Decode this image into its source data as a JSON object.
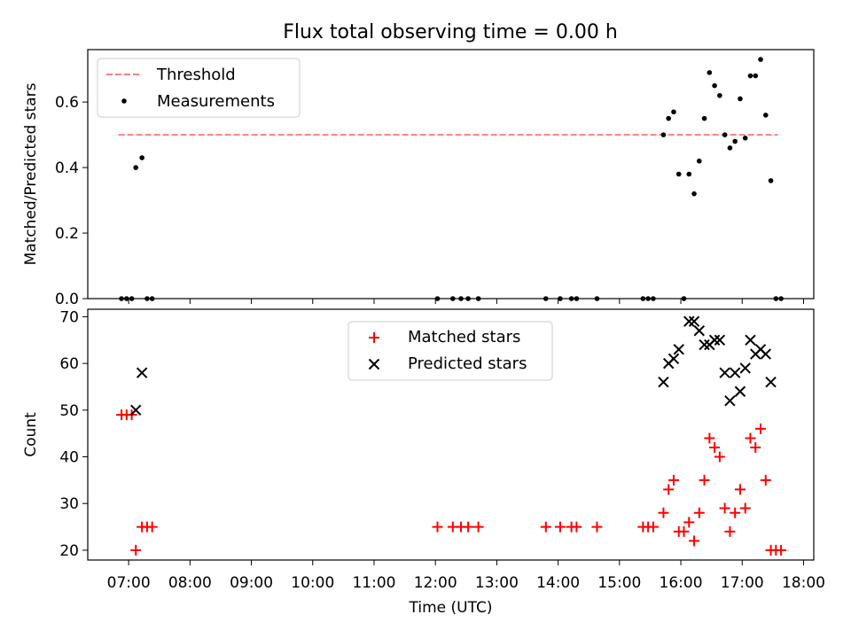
{
  "figure": {
    "title": "Flux total observing time = 0.00 h"
  },
  "chart_data": [
    {
      "type": "scatter",
      "ylabel": "Matched/Predicted stars",
      "xlabel": "",
      "xlim": [
        "06:20",
        "18:10"
      ],
      "ylim": [
        0,
        0.76
      ],
      "yticks": [
        0.0,
        0.2,
        0.4,
        0.6
      ],
      "ytick_labels": [
        "0.0",
        "0.2",
        "0.4",
        "0.6"
      ],
      "grid": false,
      "legend_position": "upper left",
      "threshold": {
        "name": "Threshold",
        "y": 0.5,
        "x_range": [
          "06:50",
          "17:35"
        ],
        "color": "#ff7f7f",
        "style": "dashed"
      },
      "series": [
        {
          "name": "Measurements",
          "marker": "dot",
          "color": "#000000",
          "points": [
            [
              "06:53",
              0.0
            ],
            [
              "06:58",
              0.0
            ],
            [
              "07:03",
              0.0
            ],
            [
              "07:07",
              0.4
            ],
            [
              "07:13",
              0.43
            ],
            [
              "07:18",
              0.0
            ],
            [
              "07:23",
              0.0
            ],
            [
              "12:02",
              0.0
            ],
            [
              "12:17",
              0.0
            ],
            [
              "12:25",
              0.0
            ],
            [
              "12:32",
              0.0
            ],
            [
              "12:42",
              0.0
            ],
            [
              "13:48",
              0.0
            ],
            [
              "14:02",
              0.0
            ],
            [
              "14:13",
              0.0
            ],
            [
              "14:18",
              0.0
            ],
            [
              "14:38",
              0.0
            ],
            [
              "15:23",
              0.0
            ],
            [
              "15:28",
              0.0
            ],
            [
              "15:33",
              0.0
            ],
            [
              "15:43",
              0.5
            ],
            [
              "15:48",
              0.55
            ],
            [
              "15:53",
              0.57
            ],
            [
              "15:58",
              0.38
            ],
            [
              "16:03",
              0.0
            ],
            [
              "16:08",
              0.38
            ],
            [
              "16:13",
              0.32
            ],
            [
              "16:18",
              0.42
            ],
            [
              "16:23",
              0.55
            ],
            [
              "16:28",
              0.69
            ],
            [
              "16:33",
              0.65
            ],
            [
              "16:38",
              0.62
            ],
            [
              "16:43",
              0.5
            ],
            [
              "16:48",
              0.46
            ],
            [
              "16:53",
              0.48
            ],
            [
              "16:58",
              0.61
            ],
            [
              "17:03",
              0.49
            ],
            [
              "17:08",
              0.68
            ],
            [
              "17:13",
              0.68
            ],
            [
              "17:18",
              0.73
            ],
            [
              "17:23",
              0.56
            ],
            [
              "17:28",
              0.36
            ],
            [
              "17:33",
              0.0
            ],
            [
              "17:38",
              0.0
            ]
          ]
        }
      ]
    },
    {
      "type": "scatter",
      "ylabel": "Count",
      "xlabel": "Time (UTC)",
      "xlim": [
        "06:20",
        "18:10"
      ],
      "ylim": [
        17.9,
        71.6
      ],
      "yticks": [
        20,
        30,
        40,
        50,
        60,
        70
      ],
      "ytick_labels": [
        "20",
        "30",
        "40",
        "50",
        "60",
        "70"
      ],
      "xticks": [
        "07:00",
        "08:00",
        "09:00",
        "10:00",
        "11:00",
        "12:00",
        "13:00",
        "14:00",
        "15:00",
        "16:00",
        "17:00",
        "18:00"
      ],
      "grid": false,
      "legend_position": "upper center",
      "series": [
        {
          "name": "Matched stars",
          "marker": "plus",
          "color": "#ff0000",
          "points": [
            [
              "06:53",
              49
            ],
            [
              "06:58",
              49
            ],
            [
              "07:03",
              49
            ],
            [
              "07:07",
              20
            ],
            [
              "07:13",
              25
            ],
            [
              "07:18",
              25
            ],
            [
              "07:23",
              25
            ],
            [
              "12:02",
              25
            ],
            [
              "12:17",
              25
            ],
            [
              "12:25",
              25
            ],
            [
              "12:32",
              25
            ],
            [
              "12:42",
              25
            ],
            [
              "13:48",
              25
            ],
            [
              "14:02",
              25
            ],
            [
              "14:13",
              25
            ],
            [
              "14:18",
              25
            ],
            [
              "14:38",
              25
            ],
            [
              "15:23",
              25
            ],
            [
              "15:28",
              25
            ],
            [
              "15:33",
              25
            ],
            [
              "15:43",
              28
            ],
            [
              "15:48",
              33
            ],
            [
              "15:53",
              35
            ],
            [
              "15:58",
              24
            ],
            [
              "16:03",
              24
            ],
            [
              "16:08",
              26
            ],
            [
              "16:13",
              22
            ],
            [
              "16:18",
              28
            ],
            [
              "16:23",
              35
            ],
            [
              "16:28",
              44
            ],
            [
              "16:33",
              42
            ],
            [
              "16:38",
              40
            ],
            [
              "16:43",
              29
            ],
            [
              "16:48",
              24
            ],
            [
              "16:53",
              28
            ],
            [
              "16:58",
              33
            ],
            [
              "17:03",
              29
            ],
            [
              "17:08",
              44
            ],
            [
              "17:13",
              42
            ],
            [
              "17:18",
              46
            ],
            [
              "17:23",
              35
            ],
            [
              "17:28",
              20
            ],
            [
              "17:33",
              20
            ],
            [
              "17:38",
              20
            ]
          ]
        },
        {
          "name": "Predicted stars",
          "marker": "x",
          "color": "#000000",
          "points": [
            [
              "07:07",
              50
            ],
            [
              "07:13",
              58
            ],
            [
              "15:43",
              56
            ],
            [
              "15:48",
              60
            ],
            [
              "15:53",
              61
            ],
            [
              "15:58",
              63
            ],
            [
              "16:08",
              69
            ],
            [
              "16:13",
              69
            ],
            [
              "16:18",
              67
            ],
            [
              "16:23",
              64
            ],
            [
              "16:28",
              64
            ],
            [
              "16:33",
              65
            ],
            [
              "16:38",
              65
            ],
            [
              "16:43",
              58
            ],
            [
              "16:48",
              52
            ],
            [
              "16:53",
              58
            ],
            [
              "16:58",
              54
            ],
            [
              "17:03",
              59
            ],
            [
              "17:08",
              65
            ],
            [
              "17:13",
              62
            ],
            [
              "17:18",
              63
            ],
            [
              "17:23",
              62
            ],
            [
              "17:28",
              56
            ]
          ]
        }
      ]
    }
  ]
}
